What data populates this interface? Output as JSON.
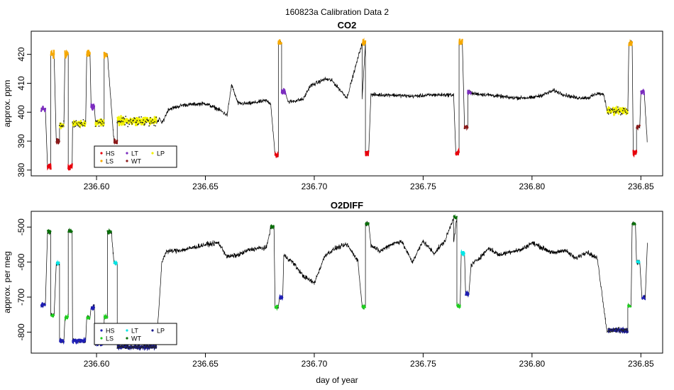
{
  "figure": {
    "suptitle": "160823a   Calibration Data 2",
    "xlabel": "day of year"
  },
  "colors": {
    "HS": "#e8000b",
    "LS": "#f5a800",
    "LT": "#7b2cbf",
    "WT": "#8b1a1a",
    "LP": "#f2f200",
    "line": "#000000",
    "o2_HS": "#1e1eb4",
    "o2_LS": "#1ecf1e",
    "o2_LT": "#00e5e5",
    "o2_WT": "#0a6e0a",
    "o2_LP": "#1a1a8c"
  },
  "chart_data": [
    {
      "type": "line",
      "id": "co2",
      "title": "CO2",
      "xlabel": "",
      "ylabel": "approx. ppm",
      "xlim": [
        236.57,
        236.86
      ],
      "ylim": [
        378,
        428
      ],
      "xticks": [
        236.6,
        236.65,
        236.7,
        236.75,
        236.8,
        236.85
      ],
      "xtick_labels": [
        "236.60",
        "236.65",
        "236.70",
        "236.75",
        "236.80",
        "236.85"
      ],
      "yticks": [
        380,
        390,
        400,
        410,
        420
      ],
      "ytick_labels": [
        "380",
        "390",
        "400",
        "410",
        "420"
      ],
      "legend": {
        "position": "bottom-left",
        "entries": [
          "HS",
          "LS",
          "LT",
          "WT",
          "LP"
        ]
      },
      "segments": [
        {
          "x0": 236.5745,
          "x1": 236.5765,
          "level": 401,
          "noise": 0.8,
          "cls": "LT"
        },
        {
          "x0": 236.5775,
          "x1": 236.579,
          "level": 381,
          "noise": 1.0,
          "cls": "HS"
        },
        {
          "x0": 236.579,
          "x1": 236.5805,
          "level": 420,
          "noise": 1.2,
          "cls": "LS"
        },
        {
          "x0": 236.5815,
          "x1": 236.583,
          "level": 390,
          "noise": 0.8,
          "cls": "WT"
        },
        {
          "x0": 236.583,
          "x1": 236.585,
          "level": 395.5,
          "noise": 1.0,
          "cls": "LP"
        },
        {
          "x0": 236.5855,
          "x1": 236.587,
          "level": 420,
          "noise": 1.2,
          "cls": "LS"
        },
        {
          "x0": 236.587,
          "x1": 236.5888,
          "level": 381,
          "noise": 1.0,
          "cls": "HS"
        },
        {
          "x0": 236.589,
          "x1": 236.595,
          "level": 396,
          "noise": 1.2,
          "cls": "LP"
        },
        {
          "x0": 236.5955,
          "x1": 236.597,
          "level": 420,
          "noise": 1.2,
          "cls": "LS"
        },
        {
          "x0": 236.5975,
          "x1": 236.599,
          "level": 402,
          "noise": 1.0,
          "cls": "LT"
        },
        {
          "x0": 236.5995,
          "x1": 236.6035,
          "level": 396.5,
          "noise": 1.2,
          "cls": "LP"
        },
        {
          "x0": 236.6035,
          "x1": 236.605,
          "level": 420,
          "noise": 1.2,
          "cls": "LS"
        },
        {
          "x0": 236.608,
          "x1": 236.6095,
          "level": 390,
          "noise": 0.8,
          "cls": "WT"
        },
        {
          "x0": 236.6095,
          "x1": 236.6275,
          "level": 397,
          "noise": 1.4,
          "cls": "LP"
        },
        {
          "x0": 236.682,
          "x1": 236.6835,
          "level": 385,
          "noise": 1.0,
          "cls": "HS"
        },
        {
          "x0": 236.6835,
          "x1": 236.685,
          "level": 424,
          "noise": 1.0,
          "cls": "LS"
        },
        {
          "x0": 236.685,
          "x1": 236.6868,
          "level": 407,
          "noise": 1.0,
          "cls": "LT"
        },
        {
          "x0": 236.722,
          "x1": 236.7235,
          "level": 424,
          "noise": 1.0,
          "cls": "LS"
        },
        {
          "x0": 236.7235,
          "x1": 236.725,
          "level": 386,
          "noise": 1.0,
          "cls": "HS"
        },
        {
          "x0": 236.765,
          "x1": 236.7665,
          "level": 386,
          "noise": 1.0,
          "cls": "HS"
        },
        {
          "x0": 236.7665,
          "x1": 236.768,
          "level": 424,
          "noise": 1.0,
          "cls": "LS"
        },
        {
          "x0": 236.769,
          "x1": 236.7705,
          "level": 395,
          "noise": 0.8,
          "cls": "WT"
        },
        {
          "x0": 236.7705,
          "x1": 236.772,
          "level": 407,
          "noise": 1.0,
          "cls": "LT"
        },
        {
          "x0": 236.8345,
          "x1": 236.844,
          "level": 400.5,
          "noise": 1.4,
          "cls": "LP"
        },
        {
          "x0": 236.8445,
          "x1": 236.846,
          "level": 424,
          "noise": 1.0,
          "cls": "LS"
        },
        {
          "x0": 236.8465,
          "x1": 236.848,
          "level": 386,
          "noise": 1.0,
          "cls": "HS"
        },
        {
          "x0": 236.848,
          "x1": 236.8495,
          "level": 395,
          "noise": 0.8,
          "cls": "WT"
        },
        {
          "x0": 236.85,
          "x1": 236.8515,
          "level": 407,
          "noise": 1.0,
          "cls": "LT"
        }
      ],
      "trace": {
        "x": [
          236.6275,
          236.629,
          236.63,
          236.633,
          236.64,
          236.65,
          236.656,
          236.66,
          236.662,
          236.665,
          236.67,
          236.678,
          236.68,
          236.688,
          236.695,
          236.698,
          236.705,
          236.708,
          236.715,
          236.722,
          236.726,
          236.735,
          236.745,
          236.755,
          236.764,
          236.772,
          236.78,
          236.79,
          236.795,
          236.8,
          236.805,
          236.81,
          236.815,
          236.82,
          236.826,
          236.83,
          236.833,
          236.8345
        ],
        "y": [
          396.0,
          398.0,
          396.0,
          401.0,
          402.5,
          403.0,
          401.0,
          399.0,
          409.5,
          403.0,
          403.0,
          404.0,
          403.0,
          403.5,
          404.5,
          409.0,
          411.5,
          411.0,
          405.0,
          404.5,
          406.0,
          406.0,
          405.5,
          406.0,
          406.0,
          406.5,
          406.0,
          405.0,
          405.0,
          405.0,
          406.0,
          407.5,
          406.0,
          405.0,
          405.0,
          406.5,
          406.0,
          401.0
        ],
        "noise": 1.2
      },
      "connector": {
        "x0": 236.5745,
        "x1": 236.853,
        "yend": 389
      }
    },
    {
      "type": "line",
      "id": "o2diff",
      "title": "O2DIFF",
      "xlabel": "day of year",
      "ylabel": "approx. per meg",
      "xlim": [
        236.57,
        236.86
      ],
      "ylim": [
        -860,
        -455
      ],
      "xticks": [
        236.6,
        236.65,
        236.7,
        236.75,
        236.8,
        236.85
      ],
      "xtick_labels": [
        "236.60",
        "236.65",
        "236.70",
        "236.75",
        "236.80",
        "236.85"
      ],
      "yticks": [
        -800,
        -700,
        -600,
        -500
      ],
      "ytick_labels": [
        "-800",
        "-700",
        "-600",
        "-500"
      ],
      "legend": {
        "position": "bottom-left",
        "entries": [
          "HS",
          "LS",
          "LT",
          "WT",
          "LP"
        ]
      },
      "segments": [
        {
          "x0": 236.5745,
          "x1": 236.5765,
          "level": -722,
          "noise": 3,
          "cls": "o2_HS"
        },
        {
          "x0": 236.5775,
          "x1": 236.579,
          "level": -513,
          "noise": 4,
          "cls": "o2_WT"
        },
        {
          "x0": 236.579,
          "x1": 236.5805,
          "level": -752,
          "noise": 4,
          "cls": "o2_LS"
        },
        {
          "x0": 236.5815,
          "x1": 236.583,
          "level": -605,
          "noise": 4,
          "cls": "o2_LT"
        },
        {
          "x0": 236.583,
          "x1": 236.585,
          "level": -825,
          "noise": 5,
          "cls": "o2_HS"
        },
        {
          "x0": 236.5855,
          "x1": 236.587,
          "level": -758,
          "noise": 4,
          "cls": "o2_LS"
        },
        {
          "x0": 236.587,
          "x1": 236.5888,
          "level": -513,
          "noise": 4,
          "cls": "o2_WT"
        },
        {
          "x0": 236.589,
          "x1": 236.595,
          "level": -825,
          "noise": 5,
          "cls": "o2_HS"
        },
        {
          "x0": 236.5955,
          "x1": 236.597,
          "level": -758,
          "noise": 4,
          "cls": "o2_LS"
        },
        {
          "x0": 236.5975,
          "x1": 236.599,
          "level": -730,
          "noise": 4,
          "cls": "o2_HS"
        },
        {
          "x0": 236.5995,
          "x1": 236.6035,
          "level": -833,
          "noise": 5,
          "cls": "o2_HS"
        },
        {
          "x0": 236.6035,
          "x1": 236.605,
          "level": -758,
          "noise": 4,
          "cls": "o2_LS"
        },
        {
          "x0": 236.605,
          "x1": 236.6068,
          "level": -513,
          "noise": 4,
          "cls": "o2_WT"
        },
        {
          "x0": 236.608,
          "x1": 236.6095,
          "level": -603,
          "noise": 4,
          "cls": "o2_LT"
        },
        {
          "x0": 236.6095,
          "x1": 236.6275,
          "level": -842,
          "noise": 5,
          "cls": "o2_LP"
        },
        {
          "x0": 236.68,
          "x1": 236.6815,
          "level": -500,
          "noise": 4,
          "cls": "o2_WT"
        },
        {
          "x0": 236.682,
          "x1": 236.6835,
          "level": -728,
          "noise": 4,
          "cls": "o2_LS"
        },
        {
          "x0": 236.684,
          "x1": 236.6855,
          "level": -703,
          "noise": 4,
          "cls": "o2_HS"
        },
        {
          "x0": 236.722,
          "x1": 236.7235,
          "level": -728,
          "noise": 4,
          "cls": "o2_LS"
        },
        {
          "x0": 236.7235,
          "x1": 236.725,
          "level": -490,
          "noise": 4,
          "cls": "o2_WT"
        },
        {
          "x0": 236.764,
          "x1": 236.7655,
          "level": -473,
          "noise": 5,
          "cls": "o2_WT"
        },
        {
          "x0": 236.7655,
          "x1": 236.767,
          "level": -725,
          "noise": 4,
          "cls": "o2_LS"
        },
        {
          "x0": 236.7675,
          "x1": 236.769,
          "level": -575,
          "noise": 5,
          "cls": "o2_LT"
        },
        {
          "x0": 236.7695,
          "x1": 236.771,
          "level": -690,
          "noise": 4,
          "cls": "o2_HS"
        },
        {
          "x0": 236.835,
          "x1": 236.844,
          "level": -795,
          "noise": 6,
          "cls": "o2_LP"
        },
        {
          "x0": 236.844,
          "x1": 236.8455,
          "level": -725,
          "noise": 4,
          "cls": "o2_LS"
        },
        {
          "x0": 236.846,
          "x1": 236.8475,
          "level": -490,
          "noise": 4,
          "cls": "o2_WT"
        },
        {
          "x0": 236.848,
          "x1": 236.8495,
          "level": -600,
          "noise": 4,
          "cls": "o2_LT"
        },
        {
          "x0": 236.8505,
          "x1": 236.852,
          "level": -703,
          "noise": 4,
          "cls": "o2_HS"
        }
      ],
      "trace": {
        "x": [
          236.6275,
          236.63,
          236.632,
          236.64,
          236.65,
          236.656,
          236.66,
          236.665,
          236.67,
          236.675,
          236.678,
          236.686,
          236.69,
          236.695,
          236.7,
          236.705,
          236.71,
          236.715,
          236.72,
          236.726,
          236.73,
          236.735,
          236.74,
          236.745,
          236.75,
          236.755,
          236.76,
          236.764,
          236.772,
          236.778,
          236.78,
          236.785,
          236.79,
          236.795,
          236.8,
          236.805,
          236.81,
          236.815,
          236.82,
          236.825,
          236.83,
          236.8345
        ],
        "y": [
          -842,
          -600,
          -570,
          -565,
          -550,
          -545,
          -585,
          -580,
          -565,
          -560,
          -560,
          -580,
          -600,
          -640,
          -660,
          -580,
          -560,
          -550,
          -595,
          -550,
          -570,
          -550,
          -540,
          -600,
          -540,
          -575,
          -540,
          -540,
          -610,
          -575,
          -560,
          -580,
          -570,
          -565,
          -545,
          -560,
          -575,
          -565,
          -590,
          -570,
          -590,
          -800
        ],
        "noise": 12
      },
      "connector": {
        "x0": 236.5745,
        "x1": 236.853,
        "yend": -545
      }
    }
  ]
}
